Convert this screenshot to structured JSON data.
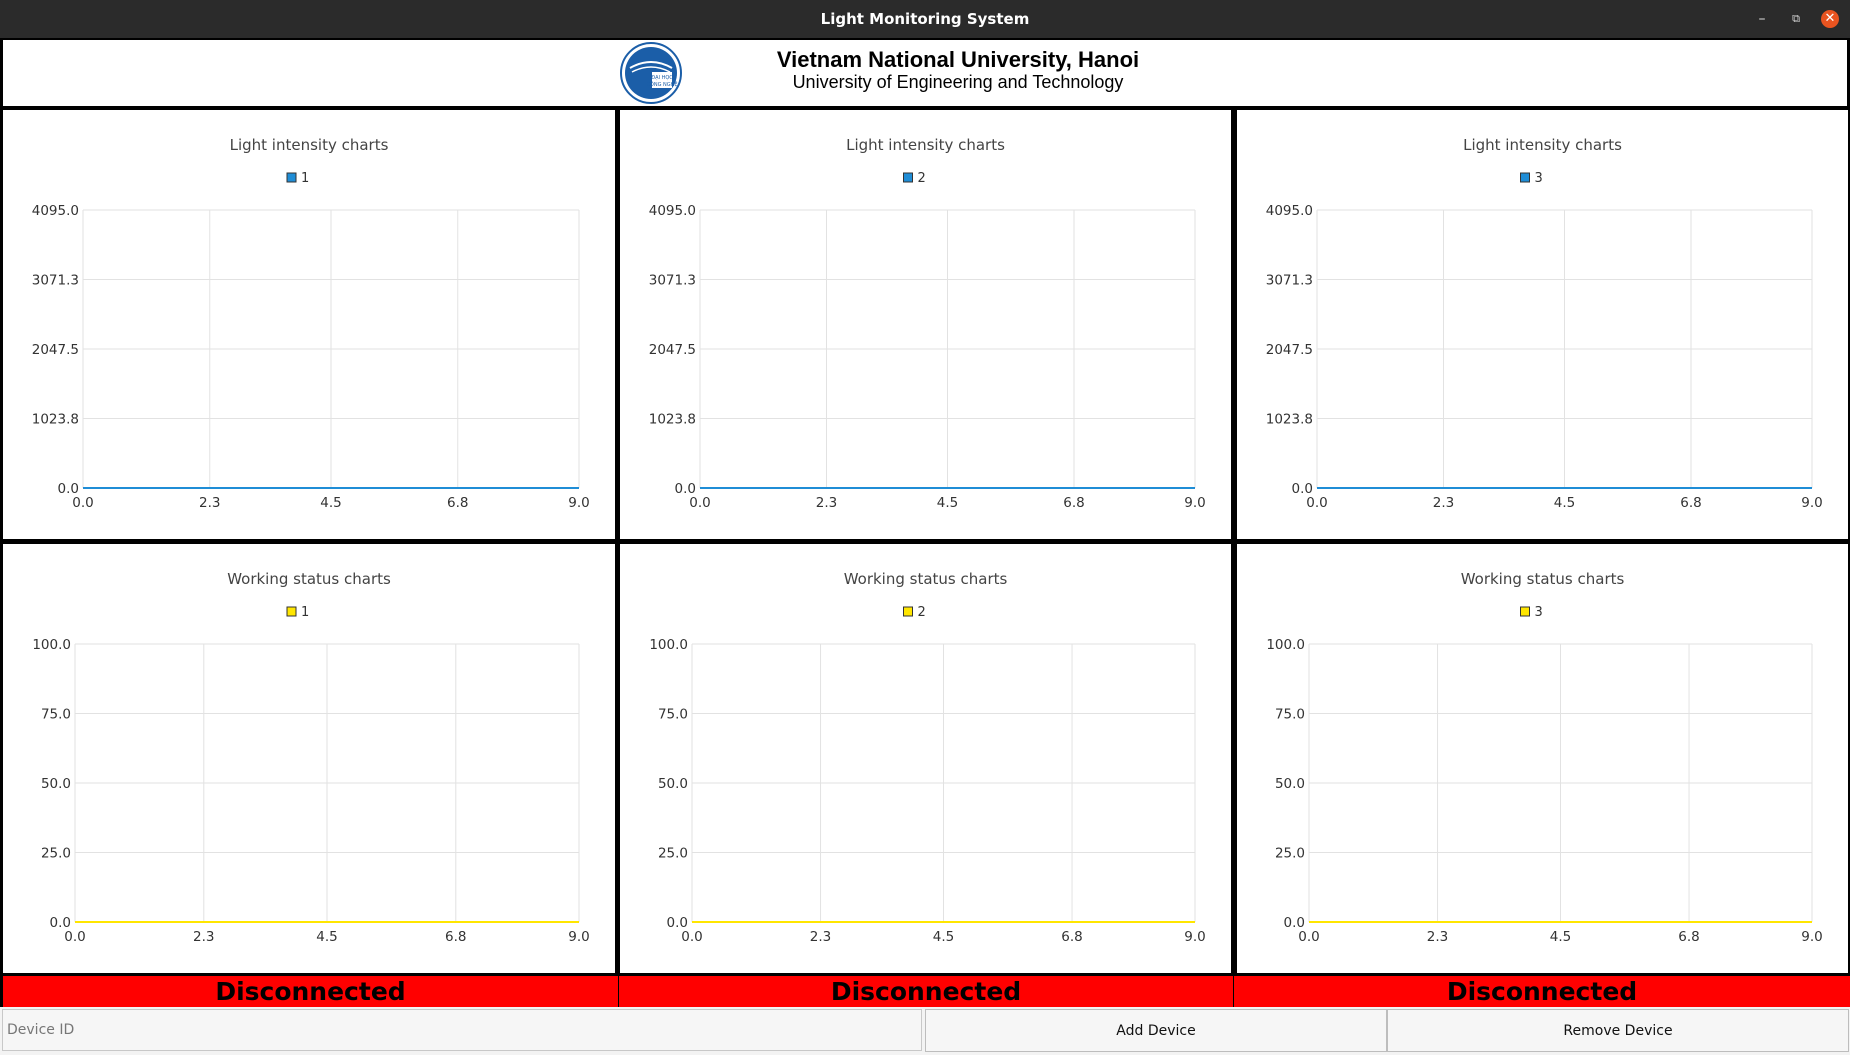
{
  "window": {
    "title": "Light Monitoring System"
  },
  "header": {
    "university": "Vietnam National University, Hanoi",
    "faculty": "University of Engineering and Technology",
    "logo_text": [
      "ĐẠI HỌC",
      "CÔNG NGHỆ"
    ]
  },
  "colors": {
    "intensity_series": "#1f8dd6",
    "status_series": "#ffe600",
    "disconnected_bg": "#ff0000"
  },
  "chart_data": [
    {
      "type": "line",
      "title": "Light intensity charts",
      "series": [
        {
          "name": "1",
          "x": [
            0,
            9
          ],
          "values": [
            0,
            0
          ]
        }
      ],
      "xlim": [
        0,
        9
      ],
      "ylim": [
        0,
        4095
      ],
      "xticks": [
        "0.0",
        "2.3",
        "4.5",
        "6.8",
        "9.0"
      ],
      "yticks": [
        "0.0",
        "1023.8",
        "2047.5",
        "3071.3",
        "4095.0"
      ],
      "grid": true,
      "legend": "top-center"
    },
    {
      "type": "line",
      "title": "Light intensity charts",
      "series": [
        {
          "name": "2",
          "x": [
            0,
            9
          ],
          "values": [
            0,
            0
          ]
        }
      ],
      "xlim": [
        0,
        9
      ],
      "ylim": [
        0,
        4095
      ],
      "xticks": [
        "0.0",
        "2.3",
        "4.5",
        "6.8",
        "9.0"
      ],
      "yticks": [
        "0.0",
        "1023.8",
        "2047.5",
        "3071.3",
        "4095.0"
      ],
      "grid": true,
      "legend": "top-center"
    },
    {
      "type": "line",
      "title": "Light intensity charts",
      "series": [
        {
          "name": "3",
          "x": [
            0,
            9
          ],
          "values": [
            0,
            0
          ]
        }
      ],
      "xlim": [
        0,
        9
      ],
      "ylim": [
        0,
        4095
      ],
      "xticks": [
        "0.0",
        "2.3",
        "4.5",
        "6.8",
        "9.0"
      ],
      "yticks": [
        "0.0",
        "1023.8",
        "2047.5",
        "3071.3",
        "4095.0"
      ],
      "grid": true,
      "legend": "top-center"
    },
    {
      "type": "line",
      "title": "Working status charts",
      "series": [
        {
          "name": "1",
          "x": [
            0,
            9
          ],
          "values": [
            0,
            0
          ]
        }
      ],
      "xlim": [
        0,
        9
      ],
      "ylim": [
        0,
        100
      ],
      "xticks": [
        "0.0",
        "2.3",
        "4.5",
        "6.8",
        "9.0"
      ],
      "yticks": [
        "0.0",
        "25.0",
        "50.0",
        "75.0",
        "100.0"
      ],
      "grid": true,
      "legend": "top-center"
    },
    {
      "type": "line",
      "title": "Working status charts",
      "series": [
        {
          "name": "2",
          "x": [
            0,
            9
          ],
          "values": [
            0,
            0
          ]
        }
      ],
      "xlim": [
        0,
        9
      ],
      "ylim": [
        0,
        100
      ],
      "xticks": [
        "0.0",
        "2.3",
        "4.5",
        "6.8",
        "9.0"
      ],
      "yticks": [
        "0.0",
        "25.0",
        "50.0",
        "75.0",
        "100.0"
      ],
      "grid": true,
      "legend": "top-center"
    },
    {
      "type": "line",
      "title": "Working status charts",
      "series": [
        {
          "name": "3",
          "x": [
            0,
            9
          ],
          "values": [
            0,
            0
          ]
        }
      ],
      "xlim": [
        0,
        9
      ],
      "ylim": [
        0,
        100
      ],
      "xticks": [
        "0.0",
        "2.3",
        "4.5",
        "6.8",
        "9.0"
      ],
      "yticks": [
        "0.0",
        "25.0",
        "50.0",
        "75.0",
        "100.0"
      ],
      "grid": true,
      "legend": "top-center"
    }
  ],
  "devices": [
    {
      "status": "Disconnected"
    },
    {
      "status": "Disconnected"
    },
    {
      "status": "Disconnected"
    }
  ],
  "controls": {
    "device_id_placeholder": "Device ID",
    "device_id_value": "",
    "add_label": "Add Device",
    "remove_label": "Remove Device"
  }
}
